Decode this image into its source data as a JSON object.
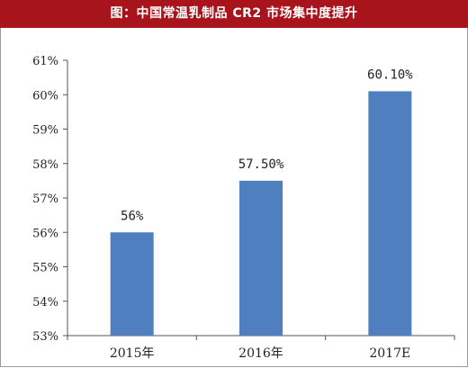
{
  "header": {
    "title": "图：中国常温乳制品 CR2 市场集中度提升"
  },
  "colors": {
    "title_bg": "#a8141b",
    "bar": "#4f7fbf",
    "axis": "#555555"
  },
  "chart_data": {
    "type": "bar",
    "title": "图：中国常温乳制品 CR2 市场集中度提升",
    "categories": [
      "2015年",
      "2016年",
      "2017E"
    ],
    "values": [
      56,
      57.5,
      60.1
    ],
    "data_labels": [
      "56%",
      "57.50%",
      "60.10%"
    ],
    "ylim": [
      53,
      61
    ],
    "yticks": [
      53,
      54,
      55,
      56,
      57,
      58,
      59,
      60,
      61
    ],
    "ytick_labels": [
      "53%",
      "54%",
      "55%",
      "56%",
      "57%",
      "58%",
      "59%",
      "60%",
      "61%"
    ],
    "grid": false
  }
}
